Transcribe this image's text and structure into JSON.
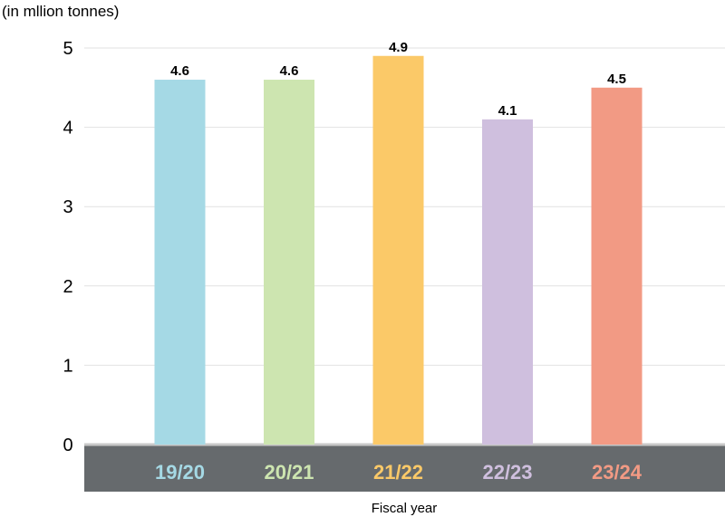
{
  "chart_data": {
    "type": "bar",
    "ylabel": "(in mllion tonnes)",
    "xlabel": "Fiscal year",
    "categories": [
      "19/20",
      "20/21",
      "21/22",
      "22/23",
      "23/24"
    ],
    "values": [
      4.6,
      4.6,
      4.9,
      4.1,
      4.5
    ],
    "data_labels": [
      "4.6",
      "4.6",
      "4.9",
      "4.1",
      "4.5"
    ],
    "colors": [
      "#a5d9e5",
      "#cde5b0",
      "#fbc968",
      "#cfbfde",
      "#f29a84"
    ],
    "axis_band_color": "#666a6d",
    "yticks": [
      0,
      1,
      2,
      3,
      4,
      5
    ],
    "ylim": [
      0,
      5
    ],
    "grid": true
  }
}
